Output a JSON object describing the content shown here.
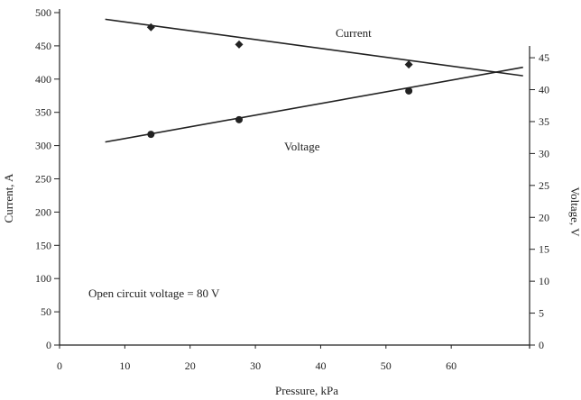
{
  "chart_data": {
    "type": "line",
    "title": "",
    "xlabel": "Pressure, kPa",
    "ylabel": "Current, A",
    "y2label": "Voltage, V",
    "xlim": [
      0,
      72
    ],
    "ylim": [
      0,
      500
    ],
    "y2lim": [
      0,
      46
    ],
    "x_ticks": [
      0,
      10,
      20,
      30,
      40,
      50,
      60
    ],
    "y_ticks": [
      0,
      50,
      100,
      150,
      200,
      250,
      300,
      350,
      400,
      450,
      500
    ],
    "y2_ticks": [
      0,
      5,
      10,
      15,
      20,
      25,
      30,
      35,
      40,
      45
    ],
    "grid": false,
    "legend": "none",
    "series": [
      {
        "name": "Current",
        "axis": "left",
        "marker": "diamond",
        "points": [
          [
            14,
            478
          ],
          [
            27.5,
            452
          ],
          [
            53.5,
            422
          ]
        ],
        "fit_line": [
          [
            7,
            490
          ],
          [
            71,
            405
          ]
        ]
      },
      {
        "name": "Voltage",
        "axis": "right",
        "marker": "circle",
        "points": [
          [
            14,
            33
          ],
          [
            27.5,
            35.3
          ],
          [
            53.5,
            39.8
          ]
        ],
        "fit_line": [
          [
            7,
            31.8
          ],
          [
            71,
            43.5
          ]
        ]
      }
    ],
    "annotations": [
      "Open circuit voltage = 80 V"
    ]
  },
  "colors": {
    "ink": "#222222"
  }
}
